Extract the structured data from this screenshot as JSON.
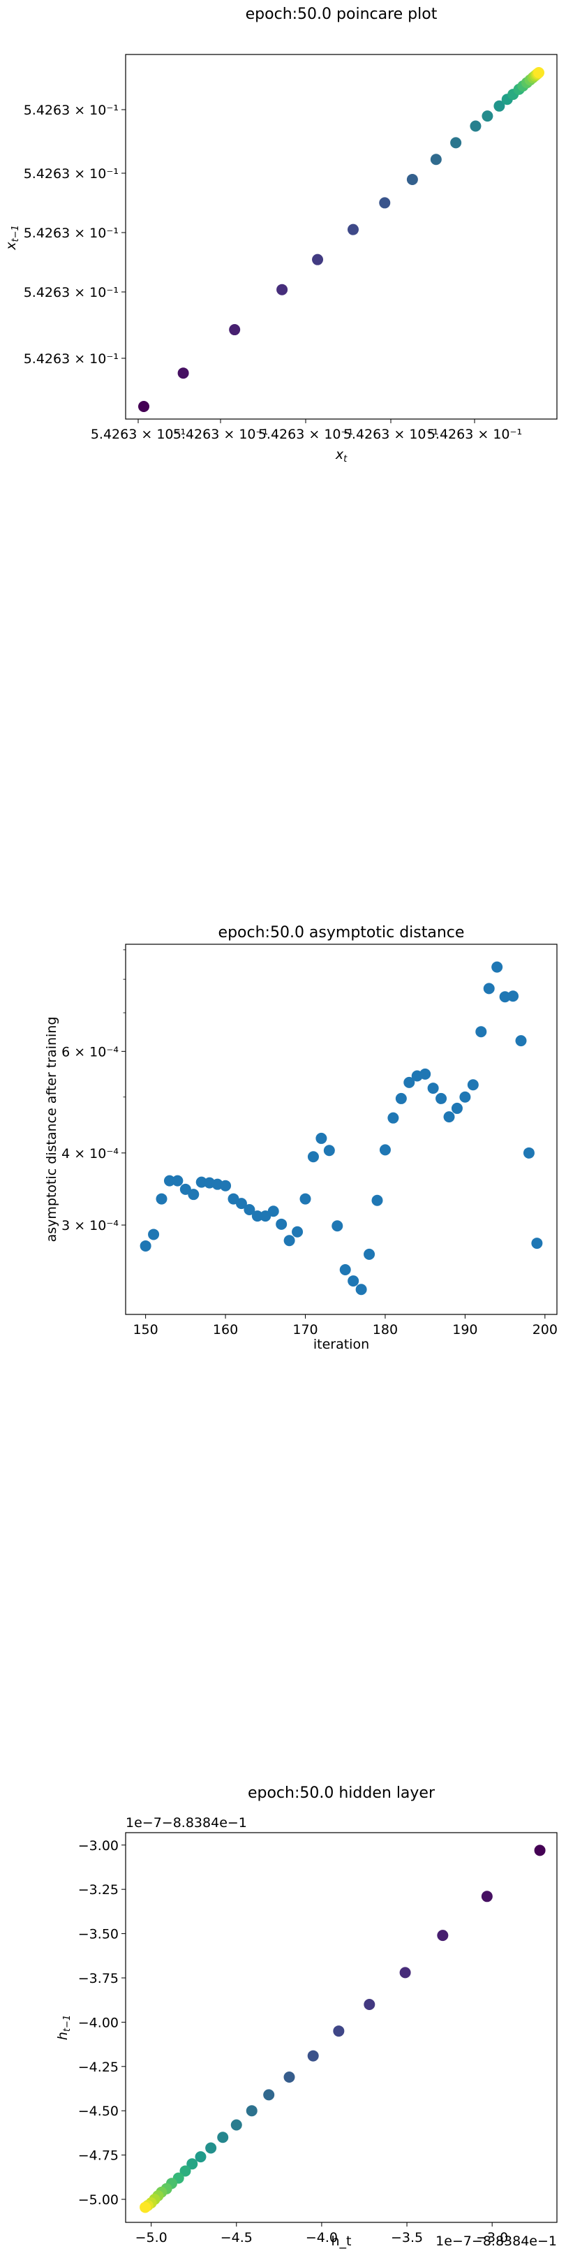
{
  "chart_data": [
    {
      "type": "scatter",
      "title": "epoch:50.0 poincare plot",
      "xlabel": "x_t",
      "ylabel": "x_{t-1}",
      "x_tick_labels": [
        "5.4263 × 10⁻¹",
        "5.4263 × 10⁻¹",
        "5.4263 × 10⁻¹",
        "5.4263 × 10⁻¹",
        "5.4263 × 10⁻¹"
      ],
      "y_tick_labels": [
        "5.4263 × 10⁻¹",
        "5.4263 × 10⁻¹",
        "5.4263 × 10⁻¹",
        "5.4263 × 10⁻¹",
        "5.4263 × 10⁻¹"
      ],
      "color_scale": "viridis",
      "grid": false,
      "note_x": [
        0.0,
        0.1,
        0.23,
        0.35,
        0.44,
        0.53,
        0.61,
        0.68,
        0.74,
        0.79,
        0.84,
        0.87,
        0.9,
        0.92,
        0.935,
        0.95,
        0.96,
        0.97,
        0.978,
        0.985,
        0.99,
        0.994,
        0.997,
        1.0
      ],
      "note_y": [
        0.0,
        0.1,
        0.23,
        0.35,
        0.44,
        0.53,
        0.61,
        0.68,
        0.74,
        0.79,
        0.84,
        0.87,
        0.9,
        0.92,
        0.935,
        0.95,
        0.96,
        0.97,
        0.978,
        0.985,
        0.99,
        0.994,
        0.997,
        1.0
      ]
    },
    {
      "type": "scatter",
      "title": "epoch:50.0 asymptotic distance",
      "xlabel": "iteration",
      "ylabel": "asymptotic distance after training",
      "yscale": "log",
      "ylim": [
        0.00021,
        0.00092
      ],
      "xlim": [
        147.5,
        201.5
      ],
      "x_ticks": [
        150,
        160,
        170,
        180,
        190,
        200
      ],
      "x_tick_labels": [
        "150",
        "160",
        "170",
        "180",
        "190",
        "200"
      ],
      "y_ticks": [
        0.0003,
        0.0004,
        0.0006
      ],
      "y_tick_labels": [
        "3 × 10⁻⁴",
        "4 × 10⁻⁴",
        "6 × 10⁻⁴"
      ],
      "color": "#1f77b4",
      "grid": false,
      "x": [
        150,
        151,
        152,
        153,
        154,
        155,
        156,
        157,
        158,
        159,
        160,
        161,
        162,
        163,
        164,
        165,
        166,
        167,
        168,
        169,
        170,
        171,
        172,
        173,
        174,
        175,
        176,
        177,
        178,
        179,
        180,
        181,
        182,
        183,
        184,
        185,
        186,
        187,
        188,
        189,
        190,
        191,
        192,
        193,
        194,
        195,
        196,
        197,
        198,
        199
      ],
      "y": [
        0.000276,
        0.000289,
        0.000333,
        0.000358,
        0.000358,
        0.000346,
        0.000339,
        0.000356,
        0.000355,
        0.000353,
        0.000351,
        0.000333,
        0.000327,
        0.000319,
        0.000311,
        0.000311,
        0.000317,
        0.000301,
        0.000282,
        0.000292,
        0.000333,
        0.000394,
        0.000424,
        0.000404,
        0.000299,
        0.000251,
        0.00024,
        0.000232,
        0.000267,
        0.000331,
        0.000405,
        0.00046,
        0.000497,
        0.00053,
        0.000544,
        0.000548,
        0.000518,
        0.000497,
        0.000462,
        0.000478,
        0.0005,
        0.000525,
        0.000649,
        0.000771,
        0.00084,
        0.000746,
        0.000748,
        0.000626,
        0.0004,
        0.000279
      ]
    },
    {
      "type": "scatter",
      "title": "epoch:50.0 hidden layer",
      "xlabel": "h_t",
      "ylabel": "h_{t-1}",
      "x_offset_label": "1e−7−8.8384e−1",
      "y_offset_label": "1e−7−8.8384e−1",
      "xlim": [
        -5.15,
        -2.62
      ],
      "ylim": [
        -5.13,
        -2.93
      ],
      "x_ticks": [
        -5.0,
        -4.5,
        -4.0,
        -3.5,
        -3.0
      ],
      "x_tick_labels": [
        "−5.0",
        "−4.5",
        "−4.0",
        "−3.5",
        "−3.0"
      ],
      "y_ticks": [
        -3.0,
        -3.25,
        -3.5,
        -3.75,
        -4.0,
        -4.25,
        -4.5,
        -4.75,
        -5.0
      ],
      "y_tick_labels": [
        "−3.00",
        "−3.25",
        "−3.50",
        "−3.75",
        "−4.00",
        "−4.25",
        "−4.50",
        "−4.75",
        "−5.00"
      ],
      "color_scale": "viridis",
      "grid": false,
      "x": [
        -2.72,
        -3.03,
        -3.29,
        -3.51,
        -3.72,
        -3.9,
        -4.05,
        -4.19,
        -4.31,
        -4.41,
        -4.5,
        -4.58,
        -4.65,
        -4.71,
        -4.76,
        -4.8,
        -4.84,
        -4.88,
        -4.91,
        -4.94,
        -4.96,
        -4.98,
        -5.0,
        -5.02,
        -5.035
      ],
      "y": [
        -3.03,
        -3.29,
        -3.51,
        -3.72,
        -3.9,
        -4.05,
        -4.19,
        -4.31,
        -4.41,
        -4.5,
        -4.58,
        -4.65,
        -4.71,
        -4.76,
        -4.8,
        -4.84,
        -4.88,
        -4.91,
        -4.94,
        -4.96,
        -4.98,
        -5.0,
        -5.02,
        -5.035,
        -5.045
      ]
    }
  ]
}
